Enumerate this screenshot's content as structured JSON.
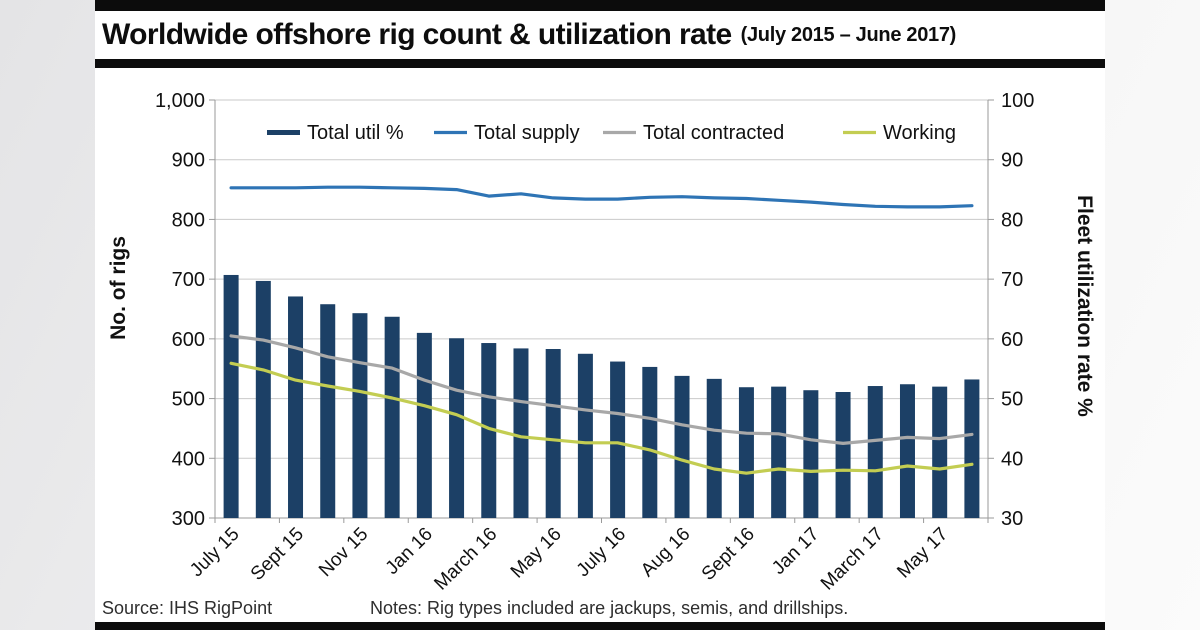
{
  "header": {
    "title": "Worldwide offshore rig count & utilization rate",
    "period": "(July 2015 – June 2017)"
  },
  "footer": {
    "source": "Source: IHS RigPoint",
    "notes": "Notes: Rig types included are jackups, semis, and drillships."
  },
  "colors": {
    "bar_navy": "#1c4066",
    "supply_blue": "#2e74b5",
    "contracted_gray": "#a8a8a8",
    "working_green": "#c3cd52",
    "grid": "#cacaca",
    "axis": "#9a9a9a",
    "black_band": "#0c0c0c"
  },
  "chart_data": {
    "type": "bar",
    "subtype": "combo-bar-and-lines",
    "n_points": 24,
    "x_tick_labels": [
      "July 15",
      "Sept 15",
      "Nov 15",
      "Jan 16",
      "March 16",
      "May 16",
      "July 16",
      "Aug 16",
      "Sept 16",
      "Jan 17",
      "March 17",
      "May 17"
    ],
    "left_axis": {
      "title": "No. of rigs",
      "min": 300,
      "max": 1000,
      "step": 100,
      "tick_labels": [
        "1,000",
        "900",
        "800",
        "700",
        "600",
        "500",
        "400",
        "300"
      ]
    },
    "right_axis": {
      "title": "Fleet utilization rate %",
      "min": 30,
      "max": 100,
      "step": 10,
      "tick_labels": [
        "100",
        "90",
        "80",
        "70",
        "60",
        "50",
        "40",
        "30"
      ]
    },
    "grid": true,
    "legend_position": "top",
    "series": [
      {
        "name": "Total util %",
        "type": "bar",
        "axis": "right",
        "color": "#1c4066",
        "values": [
          70.7,
          69.7,
          67.1,
          65.8,
          64.3,
          63.7,
          61.0,
          60.1,
          59.3,
          58.4,
          58.3,
          57.5,
          56.2,
          55.3,
          53.8,
          53.3,
          51.9,
          52.0,
          51.4,
          51.1,
          52.1,
          52.4,
          52.0,
          53.2
        ]
      },
      {
        "name": "Total supply",
        "type": "line",
        "axis": "left",
        "color": "#2e74b5",
        "values": [
          853,
          853,
          853,
          854,
          854,
          853,
          852,
          850,
          839,
          843,
          836,
          834,
          834,
          837,
          838,
          836,
          835,
          832,
          829,
          825,
          822,
          821,
          821,
          823
        ]
      },
      {
        "name": "Total contracted",
        "type": "line",
        "axis": "left",
        "color": "#a8a8a8",
        "values": [
          605,
          598,
          585,
          570,
          560,
          551,
          531,
          514,
          503,
          495,
          488,
          481,
          475,
          467,
          456,
          447,
          442,
          441,
          431,
          425,
          430,
          435,
          433,
          440
        ]
      },
      {
        "name": "Working",
        "type": "line",
        "axis": "left",
        "color": "#c3cd52",
        "values": [
          559,
          548,
          531,
          521,
          512,
          501,
          488,
          473,
          450,
          436,
          431,
          426,
          426,
          414,
          397,
          382,
          375,
          382,
          378,
          380,
          379,
          387,
          382,
          390
        ]
      }
    ]
  }
}
